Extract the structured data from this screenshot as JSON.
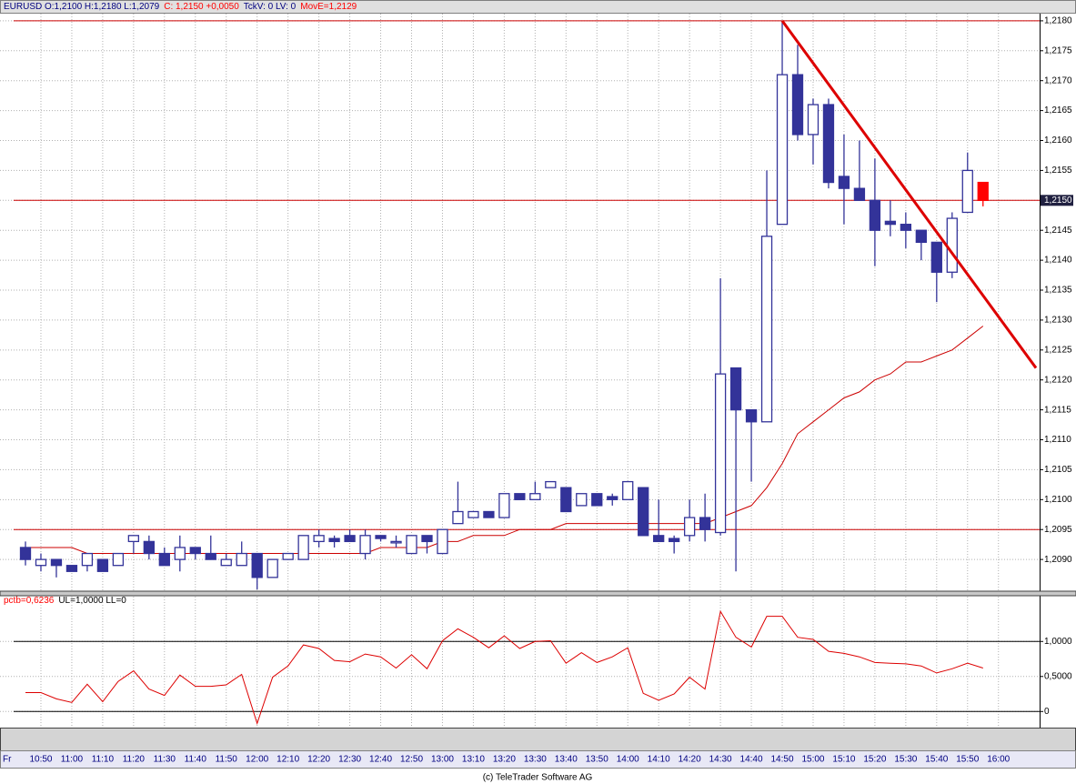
{
  "chart_data": [
    {
      "type": "candlestick",
      "header": [
        {
          "text": "EURUSD O:1,2100 H:1,2180 L:1,2079",
          "color": "#000080"
        },
        {
          "text": "C: 1,2150 +0,0050",
          "color": "#ff0000"
        },
        {
          "text": "TckV: 0 LV: 0",
          "color": "#000080"
        },
        {
          "text": "MovE=1,2129",
          "color": "#ff0000"
        }
      ],
      "open": [
        1.2092,
        1.2089,
        1.209,
        1.2089,
        1.2089,
        1.209,
        1.2089,
        1.2093,
        1.2093,
        1.2091,
        1.209,
        1.2092,
        1.2091,
        1.2089,
        1.2089,
        1.2091,
        1.2087,
        1.209,
        1.209,
        1.2093,
        1.20935,
        1.2094,
        1.2091,
        1.2094,
        1.2093,
        1.2091,
        1.2094,
        1.2091,
        1.2096,
        1.2097,
        1.2098,
        1.2097,
        1.2101,
        1.21,
        1.2102,
        1.2102,
        1.2099,
        1.2101,
        1.21005,
        1.21,
        1.2102,
        1.2094,
        1.20935,
        1.2094,
        1.2097,
        1.20945,
        1.2122,
        1.2115,
        1.2113,
        1.2146,
        1.2171,
        1.2161,
        1.2166,
        1.2154,
        1.2152,
        1.215,
        1.21465,
        1.2146,
        1.2145,
        1.2143,
        1.2138,
        1.2148,
        1.2153
      ],
      "high": [
        1.2093,
        1.2091,
        1.209,
        1.2089,
        1.2091,
        1.209,
        1.2091,
        1.2094,
        1.2094,
        1.2092,
        1.2094,
        1.2092,
        1.2094,
        1.2091,
        1.2093,
        1.2091,
        1.209,
        1.2091,
        1.2094,
        1.2095,
        1.2094,
        1.2095,
        1.2095,
        1.2094,
        1.2094,
        1.2094,
        1.2094,
        1.2095,
        1.2103,
        1.2098,
        1.2098,
        1.2101,
        1.2101,
        1.2103,
        1.2103,
        1.2102,
        1.2101,
        1.2101,
        1.2101,
        1.2103,
        1.2102,
        1.21,
        1.2094,
        1.21,
        1.2101,
        1.2137,
        1.2122,
        1.2115,
        1.2155,
        1.218,
        1.2176,
        1.2167,
        1.2167,
        1.2161,
        1.216,
        1.2157,
        1.215,
        1.2148,
        1.2145,
        1.2143,
        1.2148,
        1.2158,
        1.2153
      ],
      "low": [
        1.2089,
        1.2088,
        1.2087,
        1.2088,
        1.2088,
        1.2088,
        1.2089,
        1.2091,
        1.209,
        1.2089,
        1.2088,
        1.209,
        1.209,
        1.2089,
        1.2089,
        1.2085,
        1.2087,
        1.209,
        1.209,
        1.2092,
        1.2092,
        1.2093,
        1.209,
        1.2093,
        1.2092,
        1.2091,
        1.2091,
        1.2091,
        1.2096,
        1.2097,
        1.2097,
        1.2097,
        1.21,
        1.21,
        1.2102,
        1.2098,
        1.2099,
        1.2099,
        1.2099,
        1.21,
        1.2094,
        1.2093,
        1.2091,
        1.2093,
        1.2093,
        1.2094,
        1.2088,
        1.2103,
        1.2113,
        1.2146,
        1.216,
        1.2156,
        1.2152,
        1.2146,
        1.215,
        1.2139,
        1.2144,
        1.2142,
        1.214,
        1.2133,
        1.2137,
        1.2148,
        1.2149
      ],
      "close": [
        1.209,
        1.209,
        1.2089,
        1.2088,
        1.2091,
        1.2088,
        1.2091,
        1.2094,
        1.2091,
        1.2089,
        1.2092,
        1.2091,
        1.209,
        1.209,
        1.2091,
        1.2087,
        1.209,
        1.2091,
        1.2094,
        1.2094,
        1.2093,
        1.2093,
        1.2094,
        1.20935,
        1.2093,
        1.2094,
        1.2093,
        1.2095,
        1.2098,
        1.2098,
        1.2097,
        1.2101,
        1.21,
        1.2101,
        1.2103,
        1.2098,
        1.2101,
        1.2099,
        1.21,
        1.2103,
        1.2094,
        1.2093,
        1.2093,
        1.2097,
        1.2095,
        1.2121,
        1.2115,
        1.2113,
        1.2144,
        1.2171,
        1.2161,
        1.2166,
        1.2153,
        1.2152,
        1.215,
        1.2145,
        1.2146,
        1.2145,
        1.2143,
        1.2138,
        1.2147,
        1.2155,
        1.215
      ],
      "up_color": "#333399",
      "down_color": "#333399",
      "last_color": "#ff0000",
      "ma": {
        "color": "#cc0000",
        "values": [
          1.2092,
          1.2092,
          1.2092,
          1.2092,
          1.2091,
          1.2091,
          1.2091,
          1.2091,
          1.2091,
          1.2091,
          1.2091,
          1.2091,
          1.2091,
          1.2091,
          1.2091,
          1.2091,
          1.2091,
          1.2091,
          1.2091,
          1.2091,
          1.2091,
          1.2091,
          1.2091,
          1.2092,
          1.2092,
          1.2092,
          1.2092,
          1.2093,
          1.2093,
          1.2094,
          1.2094,
          1.2094,
          1.2095,
          1.2095,
          1.2095,
          1.2096,
          1.2096,
          1.2096,
          1.2096,
          1.2096,
          1.2096,
          1.2096,
          1.2096,
          1.2096,
          1.2096,
          1.2097,
          1.2098,
          1.2099,
          1.2102,
          1.2106,
          1.2111,
          1.2113,
          1.2115,
          1.2117,
          1.2118,
          1.212,
          1.2121,
          1.2123,
          1.2123,
          1.2124,
          1.2125,
          1.2127,
          1.2129
        ]
      },
      "hlines": [
        1.218,
        1.215,
        1.2095
      ],
      "hline_color": "#cc0000",
      "trendline": {
        "start": "14:50",
        "values": [
          1.218,
          1.2122
        ],
        "color": "#dd0000"
      },
      "ylim": [
        1.20847,
        1.21812
      ],
      "yticks": [
        {
          "value": 1.209,
          "label": "1,2090"
        },
        {
          "value": 1.2095,
          "label": "1,2095"
        },
        {
          "value": 1.21,
          "label": "1,2100"
        },
        {
          "value": 1.2105,
          "label": "1,2105"
        },
        {
          "value": 1.211,
          "label": "1,2110"
        },
        {
          "value": 1.2115,
          "label": "1,2115"
        },
        {
          "value": 1.212,
          "label": "1,2120"
        },
        {
          "value": 1.2125,
          "label": "1,2125"
        },
        {
          "value": 1.213,
          "label": "1,2130"
        },
        {
          "value": 1.2135,
          "label": "1,2135"
        },
        {
          "value": 1.214,
          "label": "1,2140"
        },
        {
          "value": 1.2145,
          "label": "1,2145"
        },
        {
          "value": 1.215,
          "label": "1,2150"
        },
        {
          "value": 1.2155,
          "label": "1,2155"
        },
        {
          "value": 1.216,
          "label": "1,2160"
        },
        {
          "value": 1.2165,
          "label": "1,2165"
        },
        {
          "value": 1.217,
          "label": "1,2170"
        },
        {
          "value": 1.2175,
          "label": "1,2175"
        },
        {
          "value": 1.218,
          "label": "1,2180"
        }
      ],
      "last_price": {
        "value": 1.215,
        "label": "1,2150"
      },
      "grid": true
    },
    {
      "type": "line",
      "header": [
        {
          "text": "pctb=0,6236",
          "color": "#ff0000"
        },
        {
          "text": "UL=1,0000 LL=0",
          "color": "#000000"
        }
      ],
      "values": [
        0.27,
        0.27,
        0.18,
        0.13,
        0.39,
        0.14,
        0.43,
        0.58,
        0.32,
        0.23,
        0.52,
        0.36,
        0.36,
        0.38,
        0.53,
        -0.17,
        0.49,
        0.65,
        0.95,
        0.9,
        0.73,
        0.71,
        0.82,
        0.78,
        0.62,
        0.81,
        0.61,
        1.01,
        1.18,
        1.06,
        0.91,
        1.08,
        0.9,
        1.0,
        1.01,
        0.69,
        0.84,
        0.7,
        0.78,
        0.91,
        0.26,
        0.16,
        0.25,
        0.49,
        0.32,
        1.43,
        1.06,
        0.92,
        1.36,
        1.36,
        1.06,
        1.03,
        0.86,
        0.83,
        0.78,
        0.7,
        0.69,
        0.68,
        0.65,
        0.55,
        0.61,
        0.69,
        0.62
      ],
      "color": "#dd0000",
      "hlines": [
        1,
        0
      ],
      "hline_color": "#000000",
      "ylim": [
        -0.23,
        1.64
      ],
      "yticks": [
        0,
        {
          "value": 0.5,
          "label": "0,5000"
        },
        {
          "value": 1,
          "label": "1,0000"
        }
      ],
      "grid": true
    }
  ],
  "x_axis": {
    "day": "Fr",
    "ticks": [
      "10:50",
      "11:00",
      "11:10",
      "11:20",
      "11:30",
      "11:40",
      "11:50",
      "12:00",
      "12:10",
      "12:20",
      "12:30",
      "12:40",
      "12:50",
      "13:00",
      "13:10",
      "13:20",
      "13:30",
      "13:40",
      "13:50",
      "14:00",
      "14:10",
      "14:20",
      "14:30",
      "14:40",
      "14:50",
      "15:00",
      "15:10",
      "15:20",
      "15:30",
      "15:40",
      "15:50",
      "16:00"
    ]
  },
  "footer": "(c) TeleTrader Software AG"
}
